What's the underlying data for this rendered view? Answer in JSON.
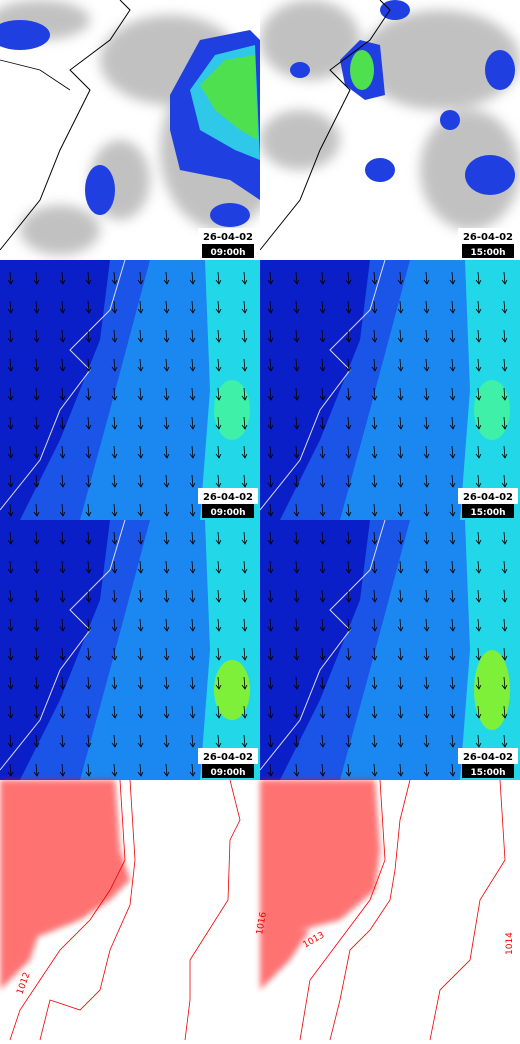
{
  "panels": [
    {
      "date": "26-04-02",
      "time": "09:00h"
    },
    {
      "date": "26-04-02",
      "time": "15:00h"
    },
    {
      "date": "26-04-02",
      "time": "09:00h"
    },
    {
      "date": "26-04-02",
      "time": "15:00h"
    },
    {
      "date": "26-04-02",
      "time": "09:00h"
    },
    {
      "date": "26-04-02",
      "time": "15:00h"
    }
  ],
  "isobar_labels": [
    "1012",
    "1016",
    "1013",
    "1014"
  ]
}
